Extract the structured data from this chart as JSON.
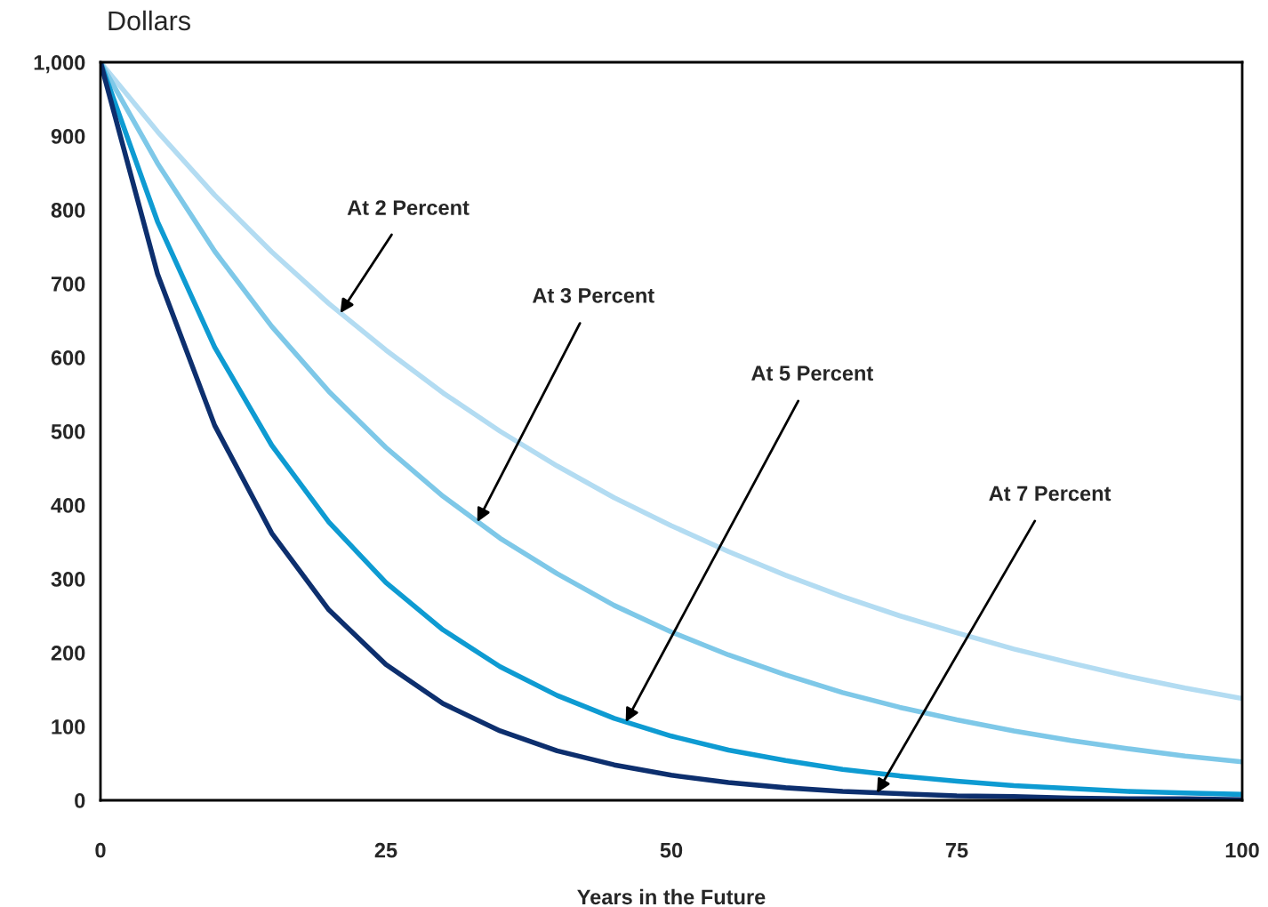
{
  "chart_data": {
    "type": "line",
    "title": "Dollars",
    "xlabel": "Years in the Future",
    "x": [
      0,
      5,
      10,
      15,
      20,
      25,
      30,
      35,
      40,
      45,
      50,
      55,
      60,
      65,
      70,
      75,
      80,
      85,
      90,
      95,
      100
    ],
    "series": [
      {
        "color": "#b3dcf2",
        "values": [
          1000,
          906,
          820,
          743,
          673,
          610,
          552,
          500,
          453,
          410,
          372,
          337,
          305,
          276,
          250,
          227,
          205,
          186,
          168,
          152,
          138
        ]
      },
      {
        "color": "#7ec8e8",
        "values": [
          1000,
          863,
          744,
          642,
          554,
          478,
          412,
          355,
          307,
          264,
          228,
          197,
          170,
          146,
          126,
          109,
          94,
          81,
          70,
          60,
          52
        ]
      },
      {
        "color": "#0e9bd2",
        "values": [
          1000,
          784,
          614,
          481,
          377,
          295,
          231,
          181,
          142,
          111,
          87,
          68,
          54,
          42,
          33,
          26,
          20,
          16,
          12,
          10,
          8
        ]
      },
      {
        "color": "#0d2f6e",
        "values": [
          1000,
          713,
          508,
          362,
          258,
          184,
          131,
          94,
          67,
          48,
          34,
          24,
          17,
          12,
          9,
          6,
          5,
          3,
          2,
          2,
          1
        ]
      }
    ],
    "annotations": [
      {
        "text": "At 2 Percent",
        "x": 21,
        "y": 660
      },
      {
        "text": "At 3 Percent",
        "x": 33,
        "y": 377
      },
      {
        "text": "At 5 Percent",
        "x": 46,
        "y": 106
      },
      {
        "text": "At 7 Percent",
        "x": 68,
        "y": 10
      }
    ],
    "xlim": [
      0,
      100
    ],
    "xticks": [
      0,
      25,
      50,
      75,
      100
    ],
    "ylim": [
      0,
      1000
    ],
    "yticks": [
      0,
      100,
      200,
      300,
      400,
      500,
      600,
      700,
      800,
      900,
      {
        "value": 1000,
        "label": "1,000"
      }
    ],
    "grid": false,
    "marker": "none",
    "line_style": "solid"
  }
}
